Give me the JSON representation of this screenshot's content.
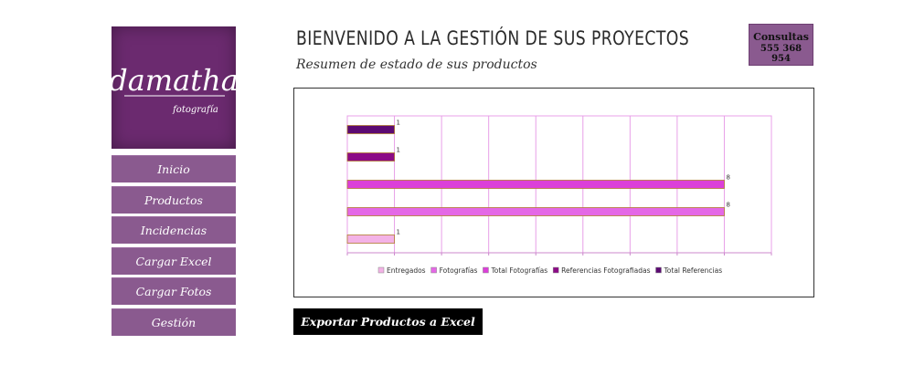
{
  "brand": {
    "logo_text": "damatha",
    "logo_subtext": "fotografía"
  },
  "header": {
    "title": "BIENVENIDO A LA GESTIÓN DE SUS PROYECTOS",
    "subtitle": "Resumen de estado de sus productos"
  },
  "contact": {
    "label": "Consultas",
    "phone": "555 368 954"
  },
  "sidebar": {
    "items": [
      {
        "label": "Inicio"
      },
      {
        "label": "Productos"
      },
      {
        "label": "Incidencias"
      },
      {
        "label": "Cargar Excel"
      },
      {
        "label": "Cargar Fotos"
      },
      {
        "label": "Gestión"
      }
    ]
  },
  "export_button": {
    "label": "Exportar Productos a Excel"
  },
  "chart_data": {
    "type": "bar",
    "orientation": "horizontal",
    "title": "",
    "xlabel": "",
    "ylabel": "",
    "xlim": [
      0,
      9
    ],
    "grid": true,
    "legend_position": "bottom",
    "series": [
      {
        "name": "Entregados",
        "value": 1,
        "color": "#f3b2e6"
      },
      {
        "name": "Fotografías",
        "value": 8,
        "color": "#e468e6"
      },
      {
        "name": "Total Fotografías",
        "value": 8,
        "color": "#dc3fd9"
      },
      {
        "name": "Referencias Fotografiadas",
        "value": 1,
        "color": "#8c0b86"
      },
      {
        "name": "Total Referencias",
        "value": 1,
        "color": "#5c0a72"
      }
    ]
  }
}
